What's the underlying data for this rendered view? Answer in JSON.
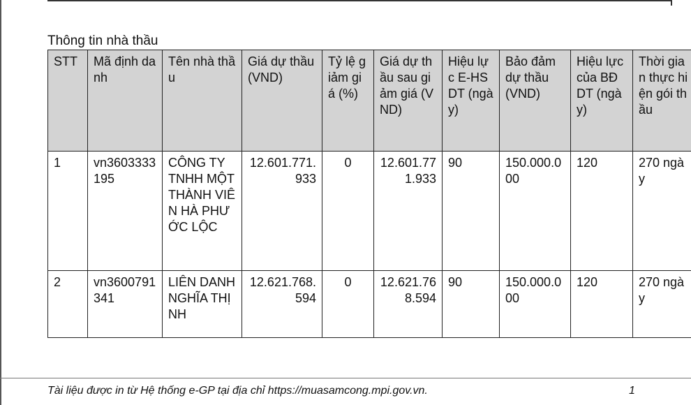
{
  "section_title": "Thông tin nhà thầu",
  "table": {
    "headers": {
      "stt": "STT",
      "code": "Mã định danh",
      "name": "Tên nhà thầu",
      "bid_price": "Giá dự thầu (VND)",
      "discount": "Tỷ lệ giảm giá (%)",
      "price_after": "Giá dự thầu sau giảm giá (VND)",
      "validity": "Hiệu lực E-HSDT (ngày)",
      "guarantee": "Bảo đảm dự thầu (VND)",
      "guarantee_validity": "Hiệu lực của BĐ DT (ngày)",
      "duration": "Thời gian thực hiện gói thầu"
    },
    "rows": [
      {
        "stt": "1",
        "code": "vn3603333195",
        "name": "CÔNG TY TNHH MỘT THÀNH VIÊN HÀ PHƯỚC LỘC",
        "bid_price": "12.601.771.933",
        "discount": "0",
        "price_after": "12.601.771.933",
        "validity": "90",
        "guarantee": "150.000.000",
        "guarantee_validity": "120",
        "duration": "270 ngày"
      },
      {
        "stt": "2",
        "code": "vn3600791341",
        "name": "LIÊN DANH NGHĨA THỊNH",
        "bid_price": "12.621.768.594",
        "discount": "0",
        "price_after": "12.621.768.594",
        "validity": "90",
        "guarantee": "150.000.000",
        "guarantee_validity": "120",
        "duration": "270 ngày"
      }
    ]
  },
  "footer": {
    "text": "Tài liệu được in từ Hệ thống e-GP tại địa chỉ https://muasamcong.mpi.gov.vn.",
    "page_number": "1"
  }
}
